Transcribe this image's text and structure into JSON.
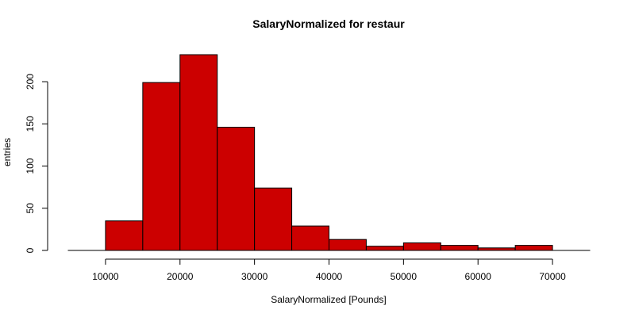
{
  "chart_data": {
    "type": "bar",
    "title": "SalaryNormalized for restaur",
    "xlabel": "SalaryNormalized [Pounds]",
    "ylabel": "entries",
    "bin_edges": [
      5000,
      10000,
      15000,
      20000,
      25000,
      30000,
      35000,
      40000,
      45000,
      50000,
      55000,
      60000,
      65000,
      70000,
      75000
    ],
    "counts": [
      0,
      35,
      199,
      232,
      146,
      74,
      29,
      13,
      5,
      9,
      6,
      3,
      6,
      0
    ],
    "xlim": [
      5000,
      75000
    ],
    "ylim": [
      0,
      232
    ],
    "xticks": [
      10000,
      20000,
      30000,
      40000,
      50000,
      60000,
      70000
    ],
    "yticks": [
      0,
      50,
      100,
      150,
      200
    ],
    "bar_color": "#cc0000",
    "edge_color": "#000000",
    "grid": false,
    "legend": "none"
  }
}
